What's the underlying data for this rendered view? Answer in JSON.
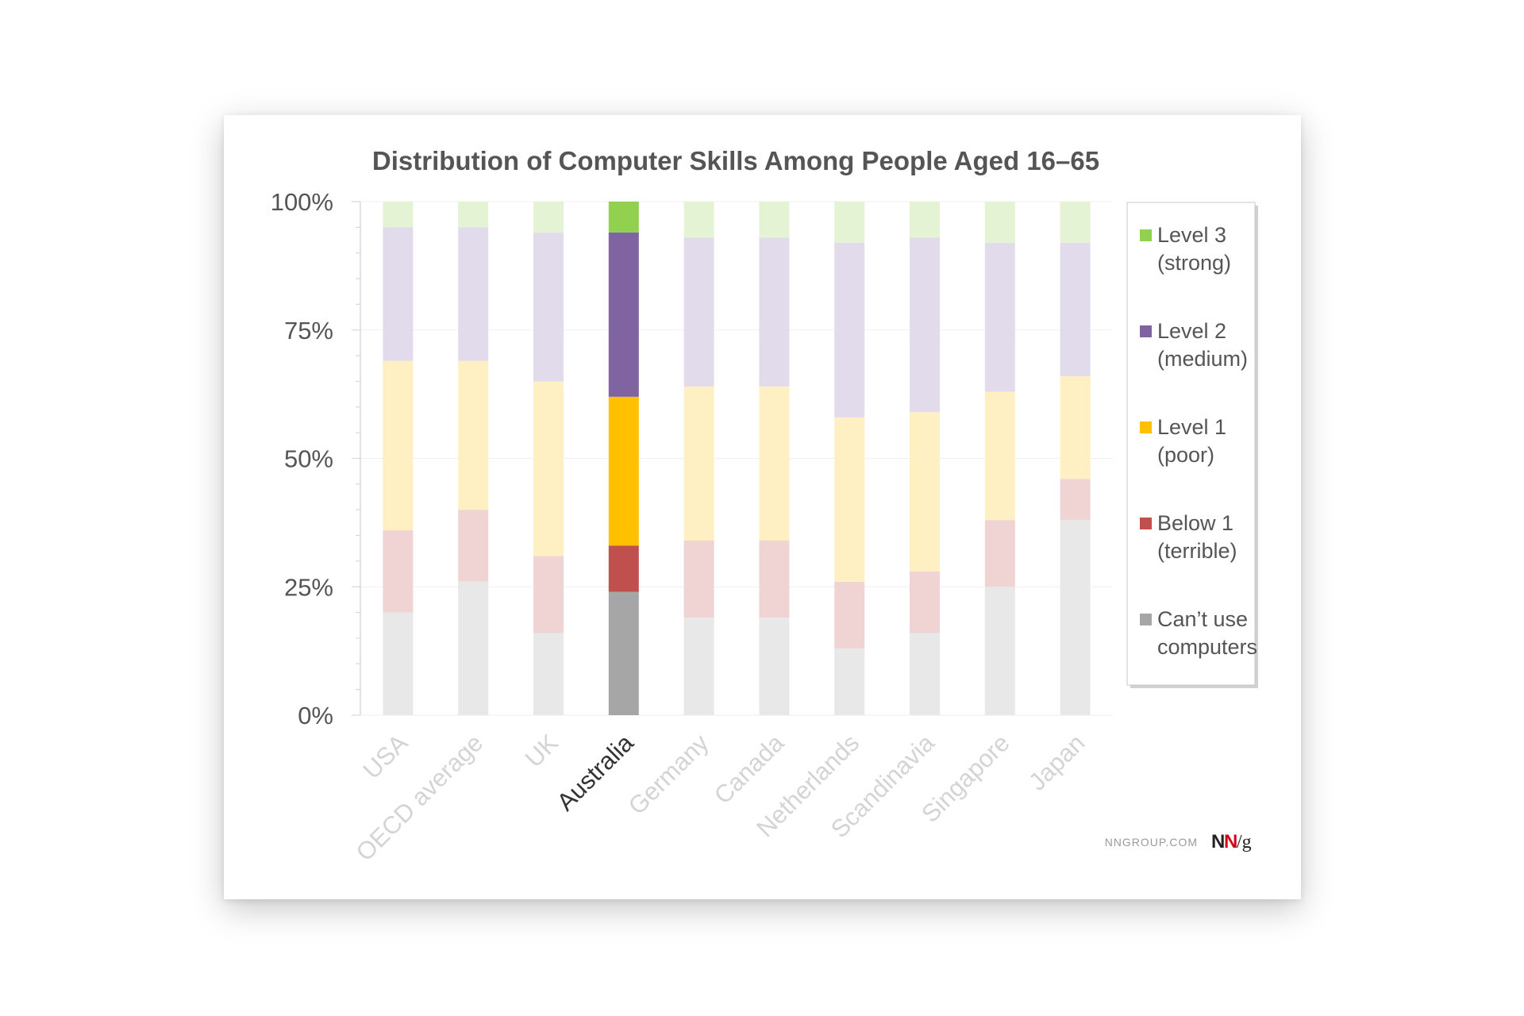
{
  "chart_data": {
    "type": "bar",
    "stacked": true,
    "title": "Distribution of Computer Skills Among People Aged 16–65",
    "categories": [
      "USA",
      "OECD average",
      "UK",
      "Australia",
      "Germany",
      "Canada",
      "Netherlands",
      "Scandinavia",
      "Singapore",
      "Japan"
    ],
    "highlighted_category": "Australia",
    "yticks": [
      "0%",
      "25%",
      "50%",
      "75%",
      "100%"
    ],
    "ylim": [
      0,
      100
    ],
    "grid": true,
    "legend_position": "right",
    "series": [
      {
        "name": "Can’t use computers",
        "legend_lines": [
          "Can’t use",
          "computers"
        ],
        "color": "#a6a6a6",
        "faded_color": "#e8e8e8",
        "values": [
          20,
          26,
          16,
          24,
          19,
          19,
          13,
          16,
          25,
          38
        ]
      },
      {
        "name": "Below 1 (terrible)",
        "legend_lines": [
          "Below 1",
          "(terrible)"
        ],
        "color": "#c0504d",
        "faded_color": "#f0d4d4",
        "values": [
          16,
          14,
          15,
          9,
          15,
          15,
          13,
          12,
          13,
          8
        ]
      },
      {
        "name": "Level 1 (poor)",
        "legend_lines": [
          "Level 1",
          "(poor)"
        ],
        "color": "#ffc000",
        "faded_color": "#fff0c4",
        "values": [
          33,
          29,
          34,
          29,
          30,
          30,
          32,
          31,
          25,
          20
        ]
      },
      {
        "name": "Level 2 (medium)",
        "legend_lines": [
          "Level 2",
          "(medium)"
        ],
        "color": "#8064a2",
        "faded_color": "#e2dbeb",
        "values": [
          26,
          26,
          29,
          32,
          29,
          29,
          34,
          34,
          29,
          26
        ]
      },
      {
        "name": "Level 3 (strong)",
        "legend_lines": [
          "Level 3",
          "(strong)"
        ],
        "color": "#92d050",
        "faded_color": "#e3f3d4",
        "values": [
          5,
          5,
          6,
          6,
          7,
          7,
          8,
          7,
          8,
          8
        ]
      }
    ]
  },
  "footer": {
    "site": "NNGROUP.COM",
    "logo_n1": "N",
    "logo_n2": "N",
    "logo_slash_g": "/g"
  },
  "colors": {
    "title_text": "#555555",
    "axis_text": "#555555",
    "faded_tick_text": "#d4d4d4",
    "highlight_tick_text": "#333333",
    "logo_black": "#222222",
    "logo_red": "#d0021b"
  }
}
